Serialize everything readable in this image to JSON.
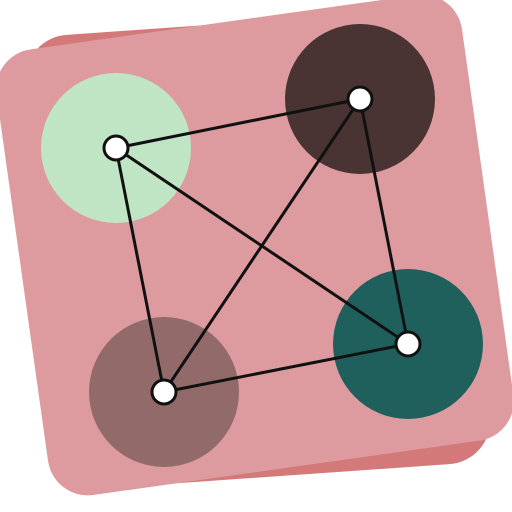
{
  "icon": {
    "name": "graph-network-app-icon",
    "colors": {
      "back_card": "#d4797a",
      "front_card": "#dd9ba0",
      "edge": "#111111",
      "node_center_fill": "#ffffff",
      "node_center_stroke": "#111111"
    },
    "nodes": [
      {
        "name": "node-top-left",
        "color": "#c0e5c4"
      },
      {
        "name": "node-top-right",
        "color": "#4a3333"
      },
      {
        "name": "node-right",
        "color": "#1f5f5c"
      },
      {
        "name": "node-bottom-left",
        "color": "#936a6a"
      }
    ],
    "edges": [
      [
        "node-top-left",
        "node-top-right"
      ],
      [
        "node-top-left",
        "node-right"
      ],
      [
        "node-top-left",
        "node-bottom-left"
      ],
      [
        "node-top-right",
        "node-right"
      ],
      [
        "node-top-right",
        "node-bottom-left"
      ],
      [
        "node-bottom-left",
        "node-right"
      ]
    ]
  }
}
